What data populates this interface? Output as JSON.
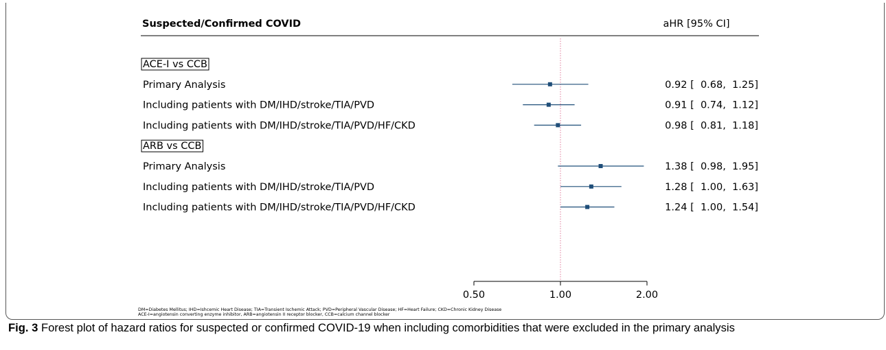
{
  "header": {
    "title": "Suspected/Confirmed COVID",
    "stat_label": "aHR [95% CI]"
  },
  "chart_data": {
    "type": "forest",
    "groups": [
      {
        "label": "ACE-I vs CCB",
        "rows": [
          {
            "label": "Primary Analysis",
            "hr": 0.92,
            "lo": 0.68,
            "hi": 1.25,
            "text": "0.92 [  0.68,  1.25]"
          },
          {
            "label": "Including patients with DM/IHD/stroke/TIA/PVD",
            "hr": 0.91,
            "lo": 0.74,
            "hi": 1.12,
            "text": "0.91 [  0.74,  1.12]"
          },
          {
            "label": "Including patients with DM/IHD/stroke/TIA/PVD/HF/CKD",
            "hr": 0.98,
            "lo": 0.81,
            "hi": 1.18,
            "text": "0.98 [  0.81,  1.18]"
          }
        ]
      },
      {
        "label": "ARB vs CCB",
        "rows": [
          {
            "label": "Primary Analysis",
            "hr": 1.38,
            "lo": 0.98,
            "hi": 1.95,
            "text": "1.38 [  0.98,  1.95]"
          },
          {
            "label": "Including patients with DM/IHD/stroke/TIA/PVD",
            "hr": 1.28,
            "lo": 1.0,
            "hi": 1.63,
            "text": "1.28 [  1.00,  1.63]"
          },
          {
            "label": "Including patients with DM/IHD/stroke/TIA/PVD/HF/CKD",
            "hr": 1.24,
            "lo": 1.0,
            "hi": 1.54,
            "text": "1.24 [  1.00,  1.54]"
          }
        ]
      }
    ],
    "x_scale": "log",
    "xlim": [
      0.5,
      2.0
    ],
    "xticks": [
      0.5,
      1.0,
      2.0
    ],
    "xtick_labels": [
      "0.50",
      "1.00",
      "2.00"
    ],
    "reference_line": 1.0,
    "colors": {
      "marker": "#1f4e79",
      "reference": "#e07a9a"
    }
  },
  "footnote": {
    "line1": "DM=Diabetes Mellitus; IHD=Ishcemic Heart Disease; TIA=Transient Ischemic Attack; PVD=Peripheral Vascular Disease; HF=Heart Failure; CKD=Chronic Kidney Disease",
    "line2": "ACE-I=angiotensin converting enzyme inhibitor, ARB=angiotensin II receptor blocker, CCB=calcium channel blocker"
  },
  "caption": {
    "label": "Fig. 3",
    "text": " Forest plot of hazard ratios for suspected or confirmed COVID-19 when including comorbidities that were excluded in the primary analysis"
  }
}
